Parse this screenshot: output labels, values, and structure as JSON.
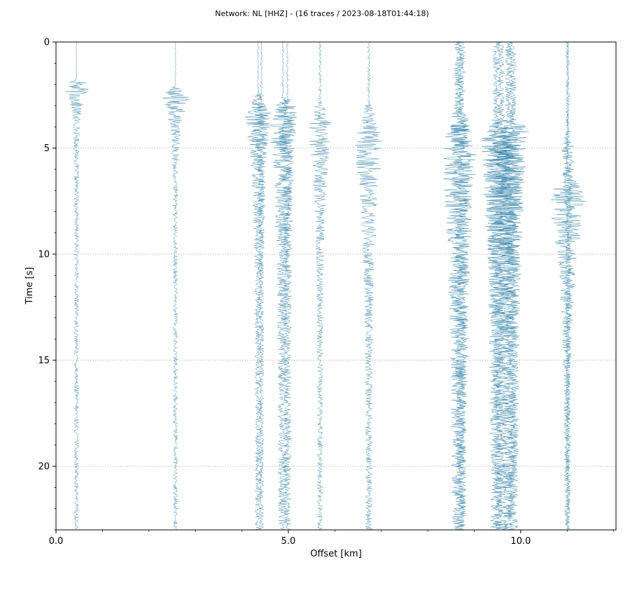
{
  "chart_data": {
    "type": "line",
    "title": "Network: NL [HHZ] - (16 traces / 2023-08-18T01:44:18)",
    "xlabel": "Offset [km]",
    "ylabel": "Time [s]",
    "xlim": [
      0.0,
      12.05
    ],
    "ylim": [
      23,
      0
    ],
    "xticks": [
      0.0,
      5.0,
      10.0
    ],
    "xtick_labels": [
      "0.0",
      "5.0",
      "10.0"
    ],
    "yticks": [
      0,
      5,
      10,
      15,
      20
    ],
    "ytick_labels": [
      "0",
      "5",
      "10",
      "15",
      "20"
    ],
    "grid": "horizontal dotted",
    "trace_color": "#2b7fa6",
    "series": [
      {
        "offset_km": 0.44,
        "onset_s": 1.8,
        "peak_s": 2.0,
        "peak_amp_km": 0.33,
        "coda_amp_km": 0.05,
        "noise_amp_km": 0.01,
        "decay_s": 0.9
      },
      {
        "offset_km": 2.57,
        "onset_s": 2.1,
        "peak_s": 2.5,
        "peak_amp_km": 0.35,
        "coda_amp_km": 0.05,
        "noise_amp_km": 0.01,
        "decay_s": 1.2
      },
      {
        "offset_km": 4.35,
        "onset_s": 2.4,
        "peak_s": 3.6,
        "peak_amp_km": 0.3,
        "coda_amp_km": 0.07,
        "noise_amp_km": 0.02,
        "decay_s": 2.5
      },
      {
        "offset_km": 4.42,
        "onset_s": 2.5,
        "peak_s": 3.4,
        "peak_amp_km": 0.22,
        "coda_amp_km": 0.05,
        "noise_amp_km": 0.02,
        "decay_s": 2.5
      },
      {
        "offset_km": 4.88,
        "onset_s": 2.6,
        "peak_s": 4.0,
        "peak_amp_km": 0.3,
        "coda_amp_km": 0.1,
        "noise_amp_km": 0.02,
        "decay_s": 3.5
      },
      {
        "offset_km": 4.98,
        "onset_s": 2.7,
        "peak_s": 3.2,
        "peak_amp_km": 0.25,
        "coda_amp_km": 0.08,
        "noise_amp_km": 0.02,
        "decay_s": 3.0
      },
      {
        "offset_km": 5.68,
        "onset_s": 2.8,
        "peak_s": 3.9,
        "peak_amp_km": 0.28,
        "coda_amp_km": 0.06,
        "noise_amp_km": 0.03,
        "decay_s": 3.0
      },
      {
        "offset_km": 6.73,
        "onset_s": 2.9,
        "peak_s": 4.9,
        "peak_amp_km": 0.33,
        "coda_amp_km": 0.07,
        "noise_amp_km": 0.03,
        "decay_s": 3.5
      },
      {
        "offset_km": 8.67,
        "onset_s": 3.3,
        "peak_s": 5.3,
        "peak_amp_km": 0.4,
        "coda_amp_km": 0.14,
        "noise_amp_km": 0.1,
        "decay_s": 6.0
      },
      {
        "offset_km": 8.72,
        "onset_s": 3.4,
        "peak_s": 4.0,
        "peak_amp_km": 0.25,
        "coda_amp_km": 0.1,
        "noise_amp_km": 0.08,
        "decay_s": 6.0
      },
      {
        "offset_km": 9.48,
        "onset_s": 3.6,
        "peak_s": 4.6,
        "peak_amp_km": 0.35,
        "coda_amp_km": 0.12,
        "noise_amp_km": 0.08,
        "decay_s": 6.0
      },
      {
        "offset_km": 9.58,
        "onset_s": 3.7,
        "peak_s": 6.7,
        "peak_amp_km": 0.45,
        "coda_amp_km": 0.12,
        "noise_amp_km": 0.07,
        "decay_s": 5.5
      },
      {
        "offset_km": 9.74,
        "onset_s": 3.6,
        "peak_s": 6.0,
        "peak_amp_km": 0.4,
        "coda_amp_km": 0.12,
        "noise_amp_km": 0.08,
        "decay_s": 5.5
      },
      {
        "offset_km": 9.83,
        "onset_s": 3.8,
        "peak_s": 3.9,
        "peak_amp_km": 0.35,
        "coda_amp_km": 0.1,
        "noise_amp_km": 0.08,
        "decay_s": 6.0
      },
      {
        "offset_km": 11.0,
        "onset_s": 6.0,
        "peak_s": 7.5,
        "peak_amp_km": 0.45,
        "coda_amp_km": 0.06,
        "noise_amp_km": 0.03,
        "decay_s": 3.0
      },
      {
        "offset_km": 11.02,
        "onset_s": 4.2,
        "peak_s": 5.2,
        "peak_amp_km": 0.15,
        "coda_amp_km": 0.05,
        "noise_amp_km": 0.03,
        "decay_s": 3.0
      }
    ]
  }
}
